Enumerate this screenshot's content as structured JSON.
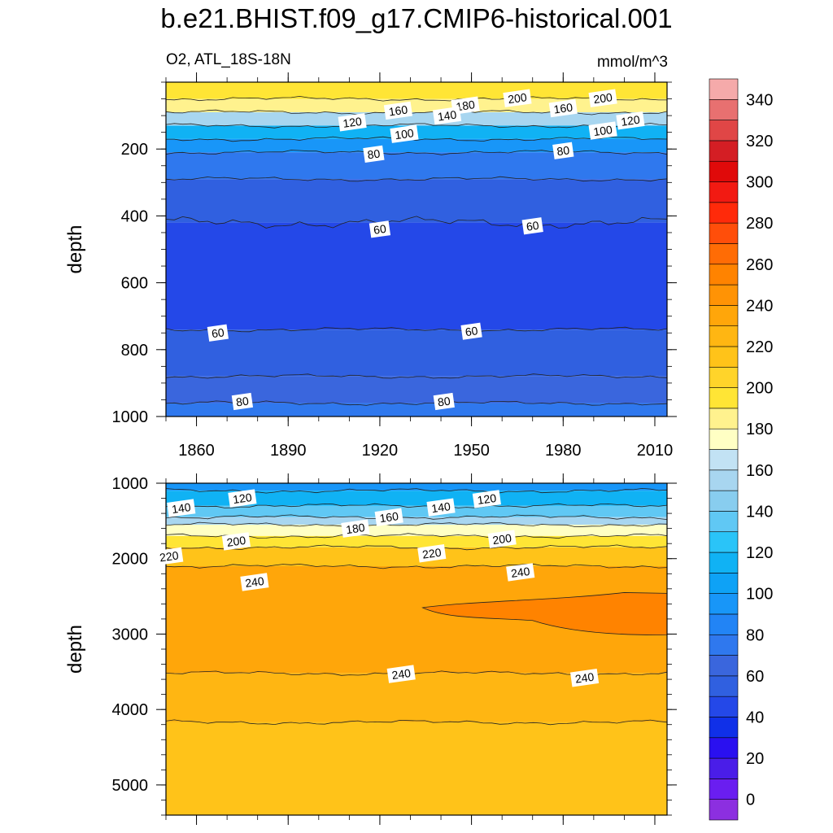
{
  "chart_data": {
    "type": "contour",
    "title": "b.e21.BHIST.f09_g17.CMIP6-historical.001",
    "subtitle_left": "O2, ATL_18S-18N",
    "subtitle_right": "mmol/m^3",
    "x_range": [
      1850,
      2014
    ],
    "x_ticks": [
      "1860",
      "1890",
      "1920",
      "1950",
      "1980",
      "2010"
    ],
    "x_tick_values": [
      1860,
      1890,
      1920,
      1950,
      1980,
      2010
    ],
    "panels": [
      {
        "name": "upper",
        "ylabel": "depth",
        "y_range": [
          0,
          1000
        ],
        "y_ticks": [
          "200",
          "400",
          "600",
          "800",
          "1000"
        ],
        "y_tick_values": [
          200,
          400,
          600,
          800,
          1000
        ],
        "bands": [
          {
            "top": 0,
            "level": 200
          },
          {
            "top": 50,
            "level": 190
          },
          {
            "top": 90,
            "level": 160
          },
          {
            "top": 130,
            "level": 120
          },
          {
            "top": 170,
            "level": 100
          },
          {
            "top": 210,
            "level": 80
          },
          {
            "top": 290,
            "level": 60
          },
          {
            "top": 420,
            "level": 50
          },
          {
            "top": 740,
            "level": 60
          },
          {
            "top": 880,
            "level": 70
          },
          {
            "top": 960,
            "level": 80
          }
        ],
        "contour_labels": [
          {
            "text": "200",
            "x": 1965,
            "y": 48
          },
          {
            "text": "200",
            "x": 1993,
            "y": 48
          },
          {
            "text": "180",
            "x": 1948,
            "y": 70
          },
          {
            "text": "160",
            "x": 1926,
            "y": 85
          },
          {
            "text": "160",
            "x": 1980,
            "y": 78
          },
          {
            "text": "140",
            "x": 1942,
            "y": 100
          },
          {
            "text": "120",
            "x": 1911,
            "y": 120
          },
          {
            "text": "120",
            "x": 2002,
            "y": 115
          },
          {
            "text": "100",
            "x": 1928,
            "y": 155
          },
          {
            "text": "100",
            "x": 1993,
            "y": 145
          },
          {
            "text": "80",
            "x": 1918,
            "y": 215
          },
          {
            "text": "80",
            "x": 1980,
            "y": 205
          },
          {
            "text": "60",
            "x": 1920,
            "y": 440
          },
          {
            "text": "60",
            "x": 1970,
            "y": 430
          },
          {
            "text": "60",
            "x": 1867,
            "y": 750
          },
          {
            "text": "60",
            "x": 1950,
            "y": 745
          },
          {
            "text": "80",
            "x": 1875,
            "y": 955
          },
          {
            "text": "80",
            "x": 1941,
            "y": 955
          }
        ]
      },
      {
        "name": "lower",
        "ylabel": "depth",
        "y_range": [
          1000,
          5400
        ],
        "y_ticks": [
          "1000",
          "2000",
          "3000",
          "4000",
          "5000"
        ],
        "y_tick_values": [
          1000,
          2000,
          3000,
          4000,
          5000
        ],
        "bands": [
          {
            "top": 1000,
            "level": 100
          },
          {
            "top": 1100,
            "level": 120
          },
          {
            "top": 1300,
            "level": 140
          },
          {
            "top": 1450,
            "level": 160
          },
          {
            "top": 1550,
            "level": 180
          },
          {
            "top": 1700,
            "level": 200
          },
          {
            "top": 1850,
            "level": 220
          },
          {
            "top": 2100,
            "level": 240
          },
          {
            "top": 3520,
            "level": 230
          },
          {
            "top": 4170,
            "level": 220
          }
        ],
        "contour_labels": [
          {
            "text": "120",
            "x": 1875,
            "y": 1200
          },
          {
            "text": "140",
            "x": 1855,
            "y": 1330
          },
          {
            "text": "120",
            "x": 1955,
            "y": 1210
          },
          {
            "text": "140",
            "x": 1940,
            "y": 1320
          },
          {
            "text": "160",
            "x": 1923,
            "y": 1450
          },
          {
            "text": "180",
            "x": 1912,
            "y": 1600
          },
          {
            "text": "200",
            "x": 1873,
            "y": 1770
          },
          {
            "text": "200",
            "x": 1960,
            "y": 1740
          },
          {
            "text": "220",
            "x": 1851,
            "y": 1970
          },
          {
            "text": "220",
            "x": 1937,
            "y": 1930
          },
          {
            "text": "240",
            "x": 1879,
            "y": 2310
          },
          {
            "text": "240",
            "x": 1966,
            "y": 2180
          },
          {
            "text": "240",
            "x": 1927,
            "y": 3530
          },
          {
            "text": "240",
            "x": 1987,
            "y": 3580
          }
        ]
      }
    ],
    "colorbar": {
      "levels": [
        0,
        10,
        20,
        30,
        40,
        50,
        60,
        70,
        80,
        90,
        100,
        110,
        120,
        130,
        140,
        150,
        160,
        170,
        180,
        190,
        200,
        210,
        220,
        230,
        240,
        250,
        260,
        270,
        280,
        290,
        300,
        310,
        320,
        330,
        340,
        350
      ],
      "colors": [
        "#8c2fe0",
        "#6a1ef0",
        "#4a1de8",
        "#2a10f0",
        "#1030e8",
        "#2448e8",
        "#3060e0",
        "#3a66dd",
        "#2f78ee",
        "#2284f5",
        "#1896f8",
        "#0ea2f6",
        "#10b2f4",
        "#2ac4f8",
        "#60c8f4",
        "#88cdef",
        "#a8d6f0",
        "#c2e2f4",
        "#ffffc4",
        "#fff28e",
        "#ffe535",
        "#ffd42a",
        "#ffc319",
        "#ffb612",
        "#ffa60a",
        "#ff9305",
        "#ff8300",
        "#ff6c05",
        "#ff4e0a",
        "#ff2a0a",
        "#f21a12",
        "#e00a0a",
        "#d41e24",
        "#e04646",
        "#e87070",
        "#f5aaaa"
      ],
      "labels": [
        "0",
        "20",
        "40",
        "60",
        "80",
        "100",
        "120",
        "140",
        "160",
        "180",
        "200",
        "220",
        "240",
        "260",
        "280",
        "300",
        "320",
        "340"
      ]
    }
  }
}
